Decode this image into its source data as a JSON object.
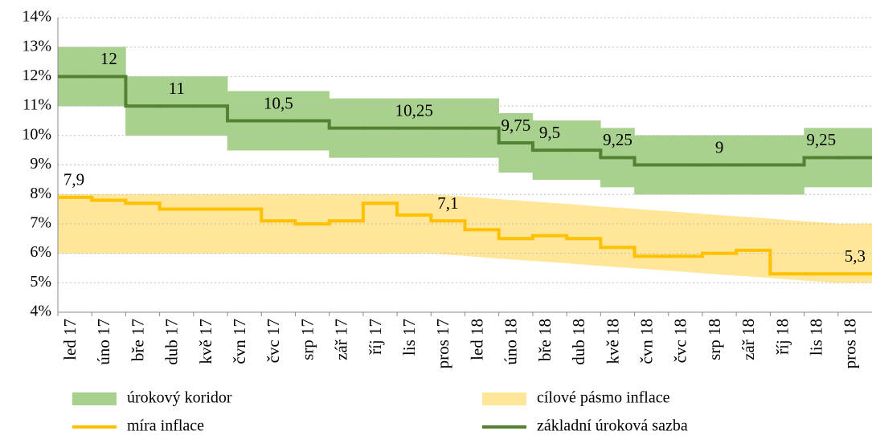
{
  "chart_data": {
    "type": "line",
    "categories": [
      "led 17",
      "úno 17",
      "bře 17",
      "dub 17",
      "kvě 17",
      "čvn 17",
      "čvc 17",
      "srp 17",
      "zář 17",
      "říj 17",
      "lis 17",
      "pros 17",
      "led 18",
      "úno 18",
      "bře 18",
      "dub 18",
      "kvě 18",
      "čvn 18",
      "čvc 18",
      "srp 18",
      "zář 18",
      "říj 18",
      "lis 18",
      "pros 18"
    ],
    "ylim": [
      4,
      14
    ],
    "yticks": [
      {
        "value": 4,
        "label": "4%"
      },
      {
        "value": 5,
        "label": "5%"
      },
      {
        "value": 6,
        "label": "6%"
      },
      {
        "value": 7,
        "label": "7%"
      },
      {
        "value": 8,
        "label": "8%"
      },
      {
        "value": 9,
        "label": "9%"
      },
      {
        "value": 10,
        "label": "10%"
      },
      {
        "value": 11,
        "label": "11%"
      },
      {
        "value": 12,
        "label": "12%"
      },
      {
        "value": 13,
        "label": "13%"
      },
      {
        "value": 14,
        "label": "14%"
      }
    ],
    "grid": true,
    "bands": [
      {
        "name": "úrokový koridor",
        "color": "#a9d18e",
        "shape": "step",
        "lower": [
          11,
          11,
          10,
          10,
          10,
          9.5,
          9.5,
          9.5,
          9.25,
          9.25,
          9.25,
          9.25,
          9.25,
          8.75,
          8.5,
          8.5,
          8.25,
          8,
          8,
          8,
          8,
          8,
          8.25,
          8.25
        ],
        "upper": [
          13,
          13,
          12,
          12,
          12,
          11.5,
          11.5,
          11.5,
          11.25,
          11.25,
          11.25,
          11.25,
          11.25,
          10.75,
          10.5,
          10.5,
          10.25,
          10,
          10,
          10,
          10,
          10,
          10.25,
          10.25
        ]
      },
      {
        "name": "cílové pásmo inflace",
        "color": "#ffe699",
        "shape": "linear",
        "lower": [
          6,
          6,
          6,
          6,
          6,
          6,
          6,
          6,
          6,
          6,
          6,
          6,
          5.92,
          5.83,
          5.75,
          5.67,
          5.58,
          5.5,
          5.42,
          5.33,
          5.25,
          5.17,
          5.08,
          5
        ],
        "upper": [
          8,
          8,
          8,
          8,
          8,
          8,
          8,
          8,
          8,
          8,
          8,
          8,
          7.92,
          7.83,
          7.75,
          7.67,
          7.58,
          7.5,
          7.42,
          7.33,
          7.25,
          7.17,
          7.08,
          7
        ]
      }
    ],
    "series": [
      {
        "name": "míra inflace",
        "color": "#ffc000",
        "values": [
          7.9,
          7.8,
          7.7,
          7.5,
          7.5,
          7.5,
          7.1,
          7,
          7.1,
          7.7,
          7.3,
          7.1,
          6.8,
          6.5,
          6.6,
          6.5,
          6.2,
          5.9,
          5.9,
          6,
          6.1,
          5.3,
          5.3,
          5.3
        ],
        "value_labels": [
          "7,9",
          null,
          null,
          null,
          null,
          null,
          null,
          null,
          null,
          null,
          null,
          "7,1",
          null,
          null,
          null,
          null,
          null,
          null,
          null,
          null,
          null,
          null,
          null,
          "5,3"
        ]
      },
      {
        "name": "základní úroková sazba",
        "color": "#548235",
        "values": [
          12,
          12,
          11,
          11,
          11,
          10.5,
          10.5,
          10.5,
          10.25,
          10.25,
          10.25,
          10.25,
          10.25,
          9.75,
          9.5,
          9.5,
          9.25,
          9,
          9,
          9,
          9,
          9,
          9.25,
          9.25
        ],
        "value_labels": [
          null,
          "12",
          null,
          "11",
          null,
          null,
          "10,5",
          null,
          null,
          null,
          "10,25",
          null,
          null,
          "9,75",
          "9,5",
          null,
          "9,25",
          null,
          null,
          "9",
          null,
          null,
          "9,25",
          null
        ]
      }
    ]
  }
}
